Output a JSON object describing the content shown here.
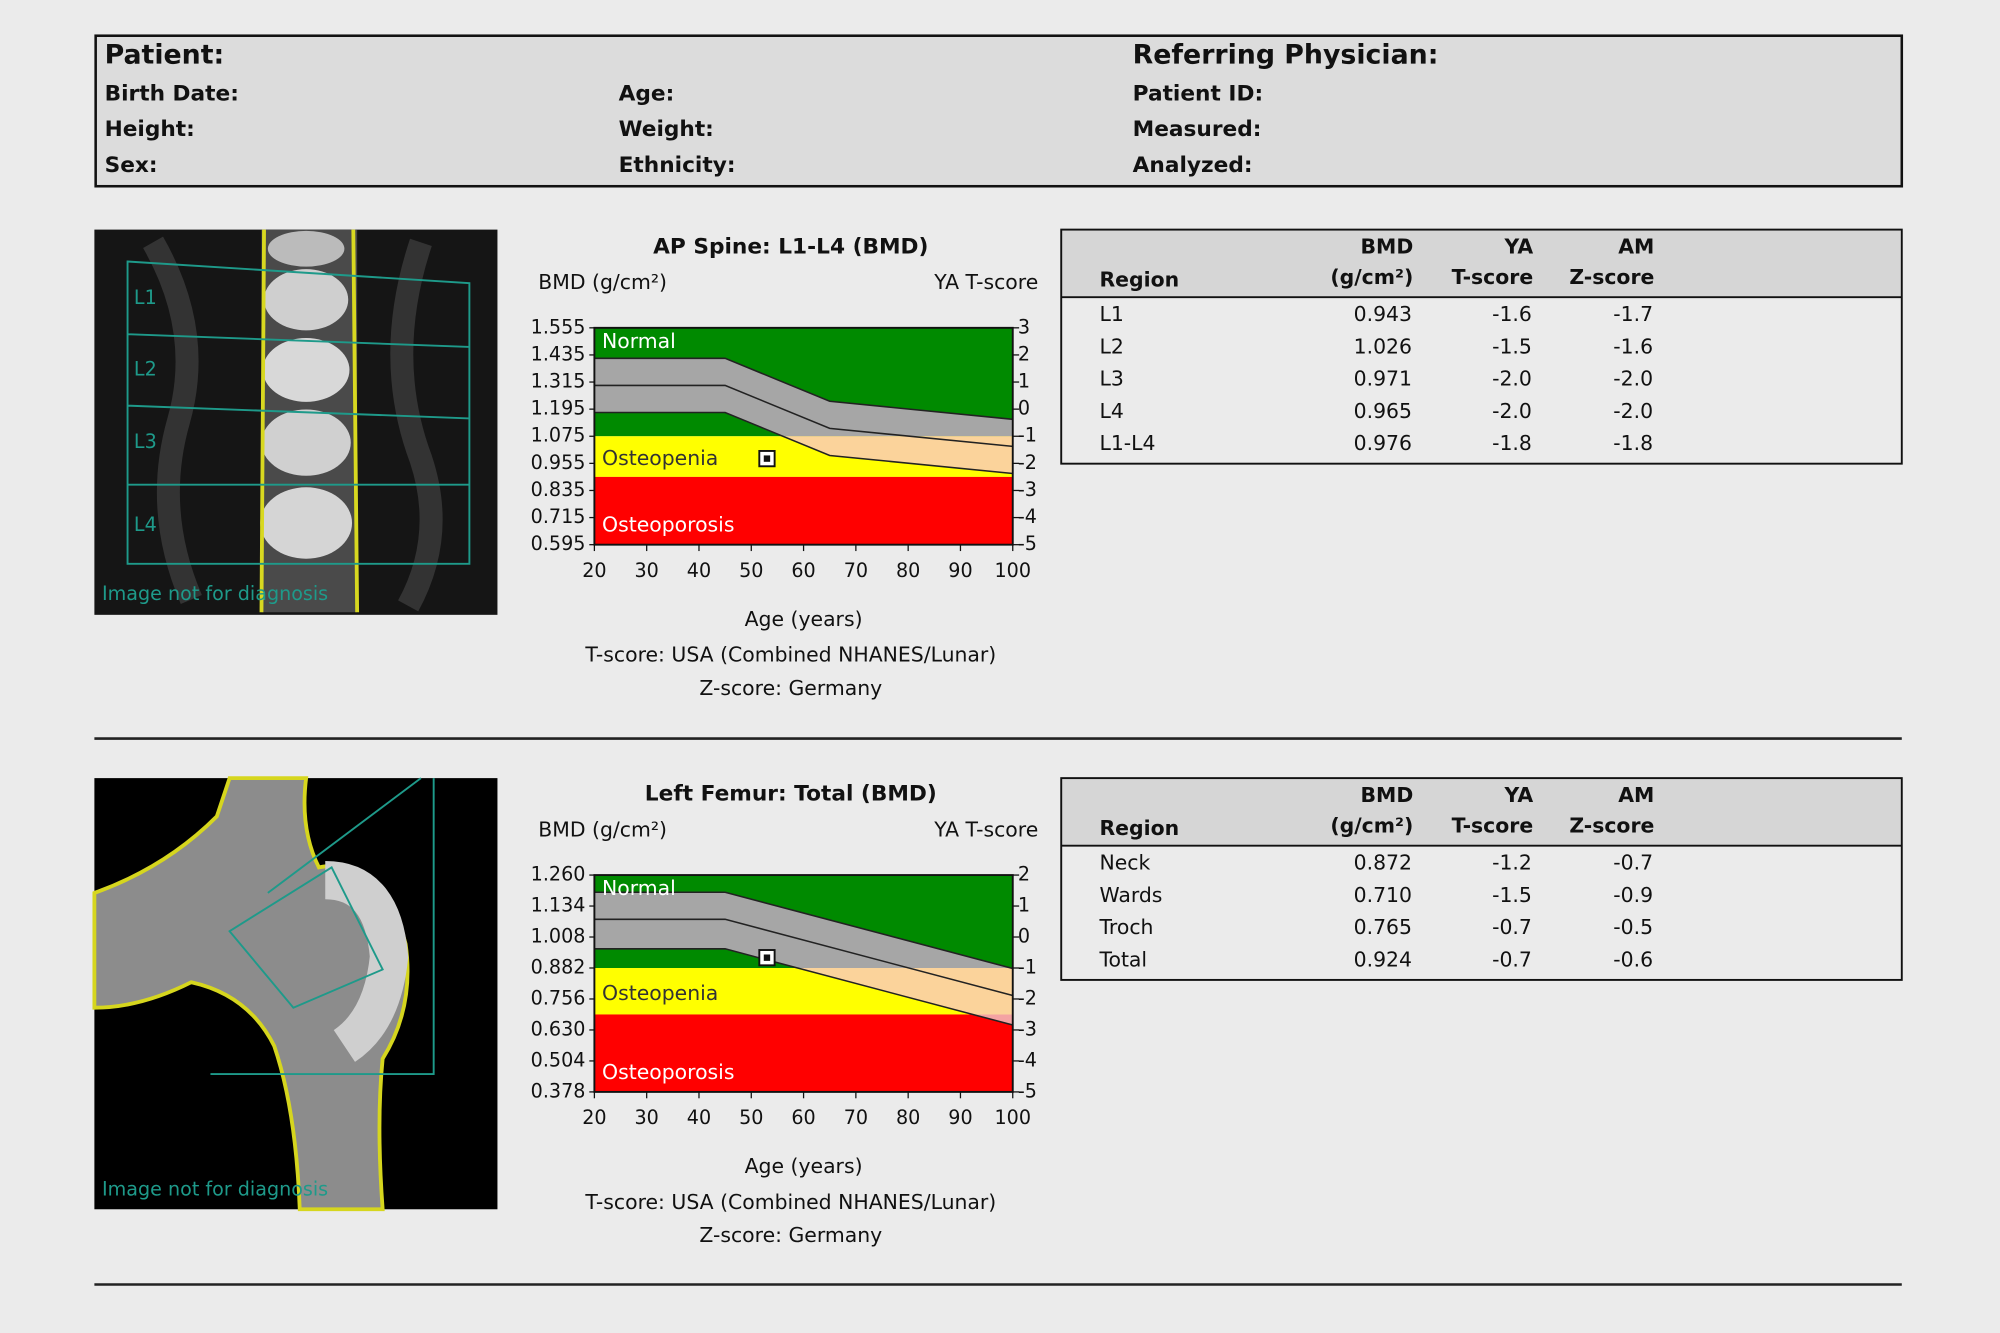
{
  "header": {
    "patient": "Patient:",
    "physician": "Referring Physician:",
    "columns": [
      [
        "Birth Date:",
        "Height:",
        "Sex:"
      ],
      [
        "Age:",
        "Weight:",
        "Ethnicity:"
      ],
      [
        "Patient ID:",
        "Measured:",
        "Analyzed:"
      ]
    ]
  },
  "images": [
    {
      "caption": "Image not for diagnosis",
      "labels": [
        "L1",
        "L2",
        "L3",
        "L4"
      ]
    },
    {
      "caption": "Image not for diagnosis"
    }
  ],
  "chart_data": [
    {
      "type": "bmd",
      "title": "AP Spine: L1-L4 (BMD)",
      "y_label": "BMD (g/cm²)",
      "y2_label": "YA T-score",
      "x_label": "Age (years)",
      "notes": [
        "T-score: USA (Combined NHANES/Lunar)",
        "Z-score: Germany"
      ],
      "xlim": [
        20,
        100
      ],
      "xticks": [
        20,
        30,
        40,
        50,
        60,
        70,
        80,
        90,
        100
      ],
      "ylim": [
        0.595,
        1.555
      ],
      "yticks": [
        1.555,
        1.435,
        1.315,
        1.195,
        1.075,
        0.955,
        0.835,
        0.715,
        0.595
      ],
      "y2lim": [
        -5,
        3
      ],
      "y2ticks": [
        3,
        2,
        1,
        0,
        -1,
        -2,
        -3,
        -4,
        -5
      ],
      "zones": [
        {
          "label": "Normal",
          "color": "#008a00",
          "band_color": "#a6a6a6",
          "label_color": "#ffffff",
          "from": 1.075,
          "to": 1.555
        },
        {
          "label": "Osteopenia",
          "color": "#ffff00",
          "band_color": "#fbd39b",
          "label_color": "#333333",
          "from": 0.895,
          "to": 1.075
        },
        {
          "label": "Osteoporosis",
          "color": "#ff0000",
          "band_color": "#f4a3a3",
          "label_color": "#ffffff",
          "from": 0.595,
          "to": 0.895
        }
      ],
      "reference": {
        "x": [
          20,
          45,
          65,
          100
        ],
        "upper": [
          1.42,
          1.42,
          1.23,
          1.15
        ],
        "mean": [
          1.3,
          1.3,
          1.11,
          1.03
        ],
        "lower": [
          1.18,
          1.18,
          0.99,
          0.91
        ]
      },
      "patient": {
        "age": 53,
        "bmd": 0.976
      }
    },
    {
      "type": "bmd",
      "title": "Left Femur: Total (BMD)",
      "y_label": "BMD (g/cm²)",
      "y2_label": "YA T-score",
      "x_label": "Age (years)",
      "notes": [
        "T-score: USA (Combined NHANES/Lunar)",
        "Z-score: Germany"
      ],
      "xlim": [
        20,
        100
      ],
      "xticks": [
        20,
        30,
        40,
        50,
        60,
        70,
        80,
        90,
        100
      ],
      "ylim": [
        0.378,
        1.26
      ],
      "yticks": [
        {
          "value": 1.26,
          "label": "1.260"
        },
        1.134,
        1.008,
        0.882,
        0.756,
        {
          "value": 0.63,
          "label": "0.630"
        },
        0.504,
        0.378
      ],
      "y2lim": [
        -5,
        2
      ],
      "y2ticks": [
        2,
        1,
        0,
        -1,
        -2,
        -3,
        -4,
        -5
      ],
      "zones": [
        {
          "label": "Normal",
          "color": "#008a00",
          "band_color": "#a6a6a6",
          "label_color": "#ffffff",
          "from": 0.882,
          "to": 1.26
        },
        {
          "label": "Osteopenia",
          "color": "#ffff00",
          "band_color": "#fbd39b",
          "label_color": "#333333",
          "from": 0.693,
          "to": 0.882
        },
        {
          "label": "Osteoporosis",
          "color": "#ff0000",
          "band_color": "#f4a3a3",
          "label_color": "#ffffff",
          "from": 0.378,
          "to": 0.693
        }
      ],
      "reference": {
        "x": [
          20,
          45,
          100
        ],
        "upper": [
          1.19,
          1.19,
          0.88
        ],
        "mean": [
          1.08,
          1.08,
          0.77
        ],
        "lower": [
          0.96,
          0.96,
          0.65
        ]
      },
      "patient": {
        "age": 53,
        "bmd": 0.924
      }
    }
  ],
  "tables": [
    {
      "columns": [
        [
          "Region"
        ],
        [
          "BMD",
          "(g/cm²)"
        ],
        [
          "YA",
          "T-score"
        ],
        [
          "AM",
          "Z-score"
        ]
      ],
      "rows": [
        [
          "L1",
          "0.943",
          "-1.6",
          "-1.7"
        ],
        [
          "L2",
          "1.026",
          "-1.5",
          "-1.6"
        ],
        [
          "L3",
          "0.971",
          "-2.0",
          "-2.0"
        ],
        [
          "L4",
          "0.965",
          "-2.0",
          "-2.0"
        ],
        [
          "L1-L4",
          "0.976",
          "-1.8",
          "-1.8"
        ]
      ]
    },
    {
      "columns": [
        [
          "Region"
        ],
        [
          "BMD",
          "(g/cm²)"
        ],
        [
          "YA",
          "T-score"
        ],
        [
          "AM",
          "Z-score"
        ]
      ],
      "rows": [
        [
          "Neck",
          "0.872",
          "-1.2",
          "-0.7"
        ],
        [
          "Wards",
          "0.710",
          "-1.5",
          "-0.9"
        ],
        [
          "Troch",
          "0.765",
          "-0.7",
          "-0.5"
        ],
        [
          "Total",
          "0.924",
          "-0.7",
          "-0.6"
        ]
      ]
    }
  ]
}
